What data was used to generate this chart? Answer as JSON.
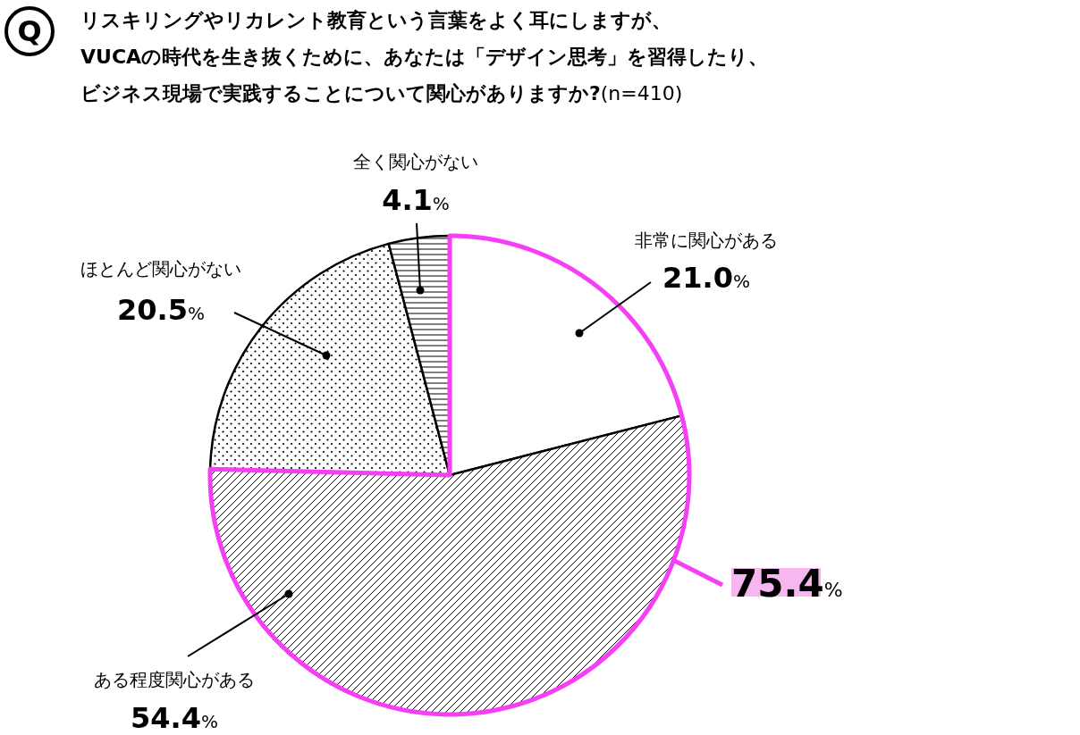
{
  "chart_data": {
    "type": "pie",
    "title": "リスキリングやリカレント教育という言葉をよく耳にしますが、VUCAの時代を生き抜くために、あなたは「デザイン思考」を習得したり、ビジネス現場で実践することについて関心がありますか?(n=410)",
    "categories": [
      "非常に関心がある",
      "ある程度関心がある",
      "ほとんど関心がない",
      "全く関心がない"
    ],
    "values": [
      21.0,
      54.4,
      20.5,
      4.1
    ],
    "colors": [
      "#ffffff",
      "#000000",
      "#000000",
      "#000000"
    ],
    "value_labels": [
      "21.0%",
      "54.4%",
      "20.5%",
      "4.1%"
    ],
    "annotations": [
      "Q",
      "75.4%"
    ]
  }
}
